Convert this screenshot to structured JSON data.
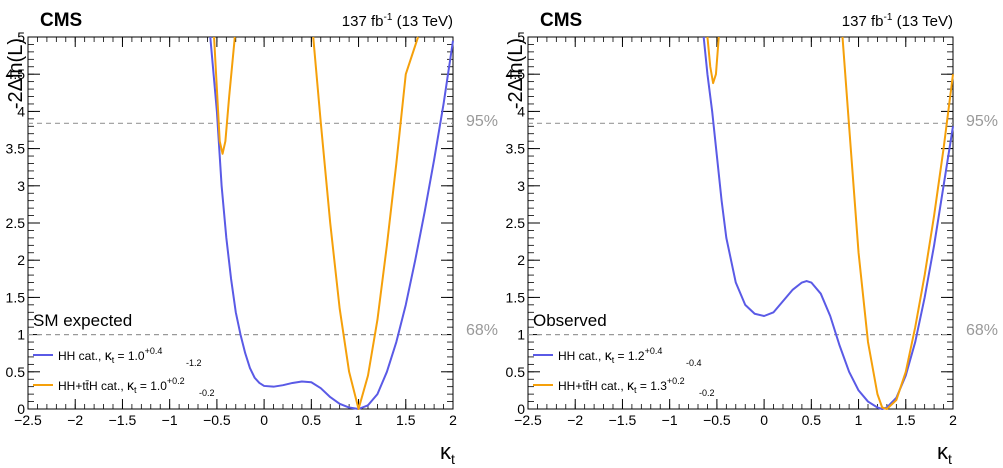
{
  "panels": [
    {
      "experiment": "CMS",
      "lumi": "137 fb",
      "lumi_exp": "-1",
      "energy": " (13 TeV)",
      "condition": "SM expected",
      "legend": [
        {
          "cat": "HH cat., ",
          "kappa": "κ",
          "sub": "t",
          "eq": " = 1.0",
          "up": "+0.4",
          "down": "-1.2"
        },
        {
          "cat": "HH+tt̄H cat., ",
          "kappa": "κ",
          "sub": "t",
          "eq": " = 1.0",
          "up": "+0.2",
          "down": "-0.2"
        }
      ]
    },
    {
      "experiment": "CMS",
      "lumi": "137 fb",
      "lumi_exp": "-1",
      "energy": " (13 TeV)",
      "condition": "Observed",
      "legend": [
        {
          "cat": "HH cat., ",
          "kappa": "κ",
          "sub": "t",
          "eq": " = 1.2",
          "up": "+0.4",
          "down": "-0.4"
        },
        {
          "cat": "HH+tt̄H cat., ",
          "kappa": "κ",
          "sub": "t",
          "eq": " = 1.3",
          "up": "+0.2",
          "down": "-0.2"
        }
      ]
    }
  ],
  "ylabel": "-2Δln(L)",
  "xlabel_main": "κ",
  "xlabel_sub": "t",
  "cl_labels": {
    "c95": "95%",
    "c68": "68%"
  },
  "colors": {
    "hh": "#5a5ae6",
    "hhtth": "#f5a00a",
    "dashed": "#999999",
    "cl_text": "#999999"
  },
  "chart_data": [
    {
      "type": "line",
      "xlim": [
        -2.5,
        2
      ],
      "ylim": [
        0,
        5
      ],
      "xticks": [
        -2.5,
        -2,
        -1.5,
        -1,
        -0.5,
        0,
        0.5,
        1,
        1.5,
        2
      ],
      "yticks": [
        0,
        0.5,
        1,
        1.5,
        2,
        2.5,
        3,
        3.5,
        4,
        4.5,
        5
      ],
      "hlines": [
        3.84,
        1.0
      ],
      "series": [
        {
          "name": "HH cat.",
          "color": "#5a5ae6",
          "segments": [
            [
              [
                -0.57,
                5.0
              ],
              [
                -0.5,
                4.0
              ],
              [
                -0.45,
                3.0
              ],
              [
                -0.4,
                2.3
              ],
              [
                -0.35,
                1.75
              ],
              [
                -0.3,
                1.3
              ],
              [
                -0.25,
                1.0
              ],
              [
                -0.2,
                0.75
              ],
              [
                -0.15,
                0.55
              ],
              [
                -0.1,
                0.42
              ],
              [
                -0.05,
                0.35
              ],
              [
                0.0,
                0.31
              ],
              [
                0.1,
                0.3
              ],
              [
                0.2,
                0.32
              ],
              [
                0.3,
                0.35
              ],
              [
                0.4,
                0.37
              ],
              [
                0.5,
                0.36
              ],
              [
                0.6,
                0.28
              ],
              [
                0.7,
                0.16
              ],
              [
                0.8,
                0.07
              ],
              [
                0.9,
                0.02
              ],
              [
                1.0,
                0.0
              ],
              [
                1.1,
                0.05
              ],
              [
                1.2,
                0.2
              ],
              [
                1.3,
                0.5
              ],
              [
                1.4,
                0.9
              ],
              [
                1.5,
                1.4
              ],
              [
                1.6,
                2.0
              ],
              [
                1.7,
                2.65
              ],
              [
                1.8,
                3.35
              ],
              [
                1.9,
                4.1
              ],
              [
                2.0,
                4.95
              ]
            ]
          ]
        },
        {
          "name": "HH+tt̄H cat.",
          "color": "#f5a00a",
          "segments": [
            [
              [
                -0.53,
                5.0
              ],
              [
                -0.5,
                4.3
              ],
              [
                -0.47,
                3.6
              ],
              [
                -0.44,
                3.43
              ],
              [
                -0.41,
                3.6
              ],
              [
                -0.37,
                4.2
              ],
              [
                -0.31,
                5.0
              ]
            ],
            [
              [
                0.52,
                5.0
              ],
              [
                0.6,
                3.85
              ],
              [
                0.7,
                2.5
              ],
              [
                0.8,
                1.35
              ],
              [
                0.9,
                0.5
              ],
              [
                1.0,
                0.0
              ],
              [
                1.1,
                0.45
              ],
              [
                1.2,
                1.2
              ],
              [
                1.3,
                2.2
              ],
              [
                1.4,
                3.3
              ],
              [
                1.5,
                4.5
              ],
              [
                1.63,
                5.0
              ]
            ]
          ]
        }
      ]
    },
    {
      "type": "line",
      "xlim": [
        -2.5,
        2
      ],
      "ylim": [
        0,
        5
      ],
      "xticks": [
        -2.5,
        -2,
        -1.5,
        -1,
        -0.5,
        0,
        0.5,
        1,
        1.5,
        2
      ],
      "yticks": [
        0,
        0.5,
        1,
        1.5,
        2,
        2.5,
        3,
        3.5,
        4,
        4.5,
        5
      ],
      "hlines": [
        3.84,
        1.0
      ],
      "series": [
        {
          "name": "HH cat.",
          "color": "#5a5ae6",
          "segments": [
            [
              [
                -0.64,
                5.0
              ],
              [
                -0.6,
                4.5
              ],
              [
                -0.55,
                4.0
              ],
              [
                -0.5,
                3.4
              ],
              [
                -0.45,
                2.8
              ],
              [
                -0.4,
                2.3
              ],
              [
                -0.3,
                1.7
              ],
              [
                -0.2,
                1.4
              ],
              [
                -0.1,
                1.28
              ],
              [
                0.0,
                1.25
              ],
              [
                0.1,
                1.3
              ],
              [
                0.2,
                1.45
              ],
              [
                0.3,
                1.6
              ],
              [
                0.4,
                1.7
              ],
              [
                0.45,
                1.72
              ],
              [
                0.5,
                1.7
              ],
              [
                0.6,
                1.55
              ],
              [
                0.7,
                1.25
              ],
              [
                0.8,
                0.85
              ],
              [
                0.9,
                0.5
              ],
              [
                1.0,
                0.25
              ],
              [
                1.1,
                0.1
              ],
              [
                1.2,
                0.02
              ],
              [
                1.25,
                0.0
              ],
              [
                1.3,
                0.02
              ],
              [
                1.4,
                0.15
              ],
              [
                1.5,
                0.45
              ],
              [
                1.6,
                0.9
              ],
              [
                1.7,
                1.5
              ],
              [
                1.8,
                2.2
              ],
              [
                1.9,
                3.0
              ],
              [
                2.0,
                3.8
              ]
            ]
          ]
        },
        {
          "name": "HH+tt̄H cat.",
          "color": "#f5a00a",
          "segments": [
            [
              [
                -0.6,
                5.0
              ],
              [
                -0.57,
                4.6
              ],
              [
                -0.54,
                4.38
              ],
              [
                -0.51,
                4.5
              ],
              [
                -0.48,
                5.0
              ]
            ],
            [
              [
                0.83,
                5.0
              ],
              [
                0.9,
                3.8
              ],
              [
                1.0,
                2.1
              ],
              [
                1.1,
                0.9
              ],
              [
                1.2,
                0.2
              ],
              [
                1.25,
                0.02
              ],
              [
                1.3,
                0.0
              ],
              [
                1.4,
                0.12
              ],
              [
                1.5,
                0.5
              ],
              [
                1.6,
                1.1
              ],
              [
                1.7,
                1.8
              ],
              [
                1.8,
                2.6
              ],
              [
                1.9,
                3.5
              ],
              [
                2.0,
                4.5
              ]
            ]
          ]
        }
      ]
    }
  ]
}
